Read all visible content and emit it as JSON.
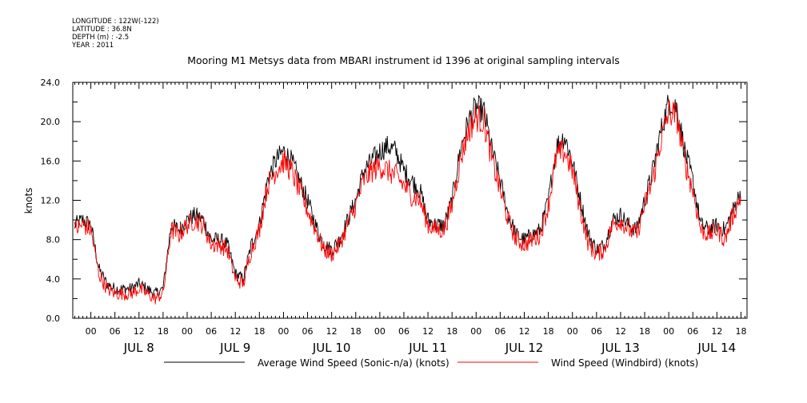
{
  "metadata": [
    {
      "label": "LONGITUDE",
      "value": "122W(-122)"
    },
    {
      "label": "LATITUDE",
      "value": "36.8N"
    },
    {
      "label": "DEPTH (m)",
      "value": "-2.5"
    },
    {
      "label": "YEAR",
      "value": "2011"
    }
  ],
  "colors": {
    "series_black": "#000000",
    "series_red": "#ff0000",
    "axis": "#000000",
    "background": "#ffffff"
  },
  "chart_data": {
    "type": "line",
    "title": "Mooring M1 Metsys data from MBARI instrument id 1396 at original sampling intervals",
    "ylabel": "knots",
    "xlabel": "",
    "ylim": [
      0,
      24
    ],
    "xlim_hours": [
      -4.5,
      163.5
    ],
    "yticks": [
      "0.0",
      "4.0",
      "8.0",
      "12.0",
      "16.0",
      "20.0",
      "24.0"
    ],
    "xticks": [
      "00",
      "06",
      "12",
      "18",
      "00",
      "06",
      "12",
      "18",
      "00",
      "06",
      "12",
      "18",
      "00",
      "06",
      "12",
      "18",
      "00",
      "06",
      "12",
      "18",
      "00",
      "06",
      "12",
      "18",
      "00",
      "06",
      "12",
      "18"
    ],
    "day_labels": [
      "JUL  8",
      "JUL  9",
      "JUL 10",
      "JUL 11",
      "JUL 12",
      "JUL 13",
      "JUL 14"
    ],
    "grid": false,
    "legend_position": "bottom",
    "x_units": "hours since Jul 8 00:00",
    "series": [
      {
        "name": "Average Wind Speed (Sonic-n/a) (knots)",
        "color": "#000000",
        "x": [
          -4,
          -2,
          0,
          2,
          4,
          6,
          8,
          10,
          12,
          14,
          16,
          18,
          20,
          22,
          24,
          26,
          28,
          30,
          32,
          34,
          36,
          38,
          40,
          42,
          44,
          46,
          48,
          50,
          52,
          54,
          56,
          58,
          60,
          62,
          64,
          66,
          68,
          70,
          72,
          74,
          76,
          78,
          80,
          82,
          84,
          86,
          88,
          90,
          92,
          94,
          96,
          98,
          100,
          102,
          104,
          106,
          108,
          110,
          112,
          114,
          116,
          118,
          120,
          122,
          124,
          126,
          128,
          130,
          132,
          134,
          136,
          138,
          140,
          142,
          144,
          146,
          148,
          150,
          152,
          154,
          156,
          158,
          160,
          162
        ],
        "values": [
          9.5,
          10,
          9.5,
          5,
          3.5,
          3,
          3,
          3,
          3.5,
          3,
          2.5,
          3,
          9.5,
          9,
          10,
          10.5,
          10,
          8,
          8,
          7.5,
          4.5,
          4,
          7.5,
          9.5,
          14,
          16,
          17,
          16,
          14,
          12,
          9.5,
          7.5,
          7,
          8,
          10,
          12,
          15,
          16,
          17,
          17.5,
          17,
          15,
          14,
          13,
          10,
          9.5,
          9.5,
          12,
          17,
          20,
          21.5,
          21,
          17,
          14,
          10.5,
          8.5,
          8,
          8.5,
          9,
          12,
          17.5,
          18.5,
          16,
          12,
          8.5,
          7,
          7.5,
          10,
          10.5,
          9.5,
          9,
          12,
          15,
          19,
          22,
          21.5,
          17,
          14,
          9.5,
          9,
          9.5,
          9,
          11,
          13
        ]
      },
      {
        "name": "Wind Speed (Windbird) (knots)",
        "color": "#ff0000",
        "x": [
          -4,
          -2,
          0,
          2,
          4,
          6,
          8,
          10,
          12,
          14,
          16,
          18,
          20,
          22,
          24,
          26,
          28,
          30,
          32,
          34,
          36,
          38,
          40,
          42,
          44,
          46,
          48,
          50,
          52,
          54,
          56,
          58,
          60,
          62,
          64,
          66,
          68,
          70,
          72,
          74,
          76,
          78,
          80,
          82,
          84,
          86,
          88,
          90,
          92,
          94,
          96,
          98,
          100,
          102,
          104,
          106,
          108,
          110,
          112,
          114,
          116,
          118,
          120,
          122,
          124,
          126,
          128,
          130,
          132,
          134,
          136,
          138,
          140,
          142,
          144,
          146,
          148,
          150,
          152,
          154,
          156,
          158,
          160,
          162
        ],
        "values": [
          9,
          9.5,
          9,
          4.5,
          3,
          2.5,
          2.5,
          2.5,
          3,
          2.5,
          2,
          2.5,
          9,
          8.5,
          9.5,
          10,
          9.5,
          7.5,
          7.5,
          7,
          4,
          3.5,
          7,
          9,
          13.5,
          15,
          16,
          15,
          13,
          11,
          9,
          7,
          6.5,
          7.5,
          9.5,
          11.5,
          14,
          15,
          15.5,
          15,
          14.5,
          13.5,
          12.5,
          12,
          9.5,
          9,
          9,
          11.5,
          16,
          19,
          20.5,
          20,
          16,
          13,
          10,
          8,
          7.5,
          8,
          8.5,
          11.5,
          16.5,
          17,
          15,
          11,
          7.5,
          6.5,
          7,
          9.5,
          10,
          9,
          8.5,
          11.5,
          14,
          18,
          21,
          20.5,
          16,
          13,
          9,
          8.5,
          9,
          8,
          10.5,
          12.5
        ]
      }
    ]
  }
}
